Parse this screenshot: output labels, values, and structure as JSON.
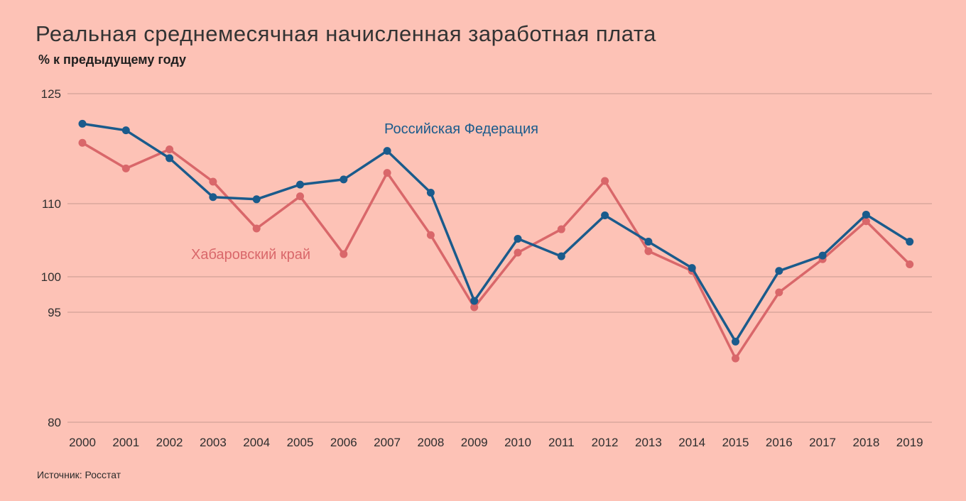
{
  "chart_data": {
    "type": "line",
    "title": "Реальная среднемесячная начисленная заработная плата",
    "subtitle": "% к предыдущему году",
    "source": "Источник: Росстат",
    "x": [
      "2000",
      "2001",
      "2002",
      "2003",
      "2004",
      "2005",
      "2006",
      "2007",
      "2008",
      "2009",
      "2010",
      "2011",
      "2012",
      "2013",
      "2014",
      "2015",
      "2016",
      "2017",
      "2018",
      "2019"
    ],
    "yticks": [
      80,
      95,
      100,
      110,
      125
    ],
    "ylim": [
      80,
      125
    ],
    "grid": true,
    "series": [
      {
        "name": "Российская Федерация",
        "color": "#1a5b8c",
        "values": [
          120.9,
          120.0,
          116.2,
          110.9,
          110.6,
          112.6,
          113.3,
          117.2,
          111.5,
          96.6,
          105.2,
          102.8,
          108.4,
          104.8,
          101.2,
          91.0,
          100.8,
          102.9,
          108.5,
          104.8
        ]
      },
      {
        "name": "Хабаровский край",
        "color": "#d9676a",
        "values": [
          118.3,
          114.8,
          117.4,
          113.0,
          106.6,
          111.0,
          103.1,
          114.2,
          105.7,
          95.7,
          103.3,
          106.5,
          113.1,
          103.5,
          100.8,
          88.7,
          97.8,
          102.4,
          107.6,
          101.7
        ]
      }
    ]
  }
}
